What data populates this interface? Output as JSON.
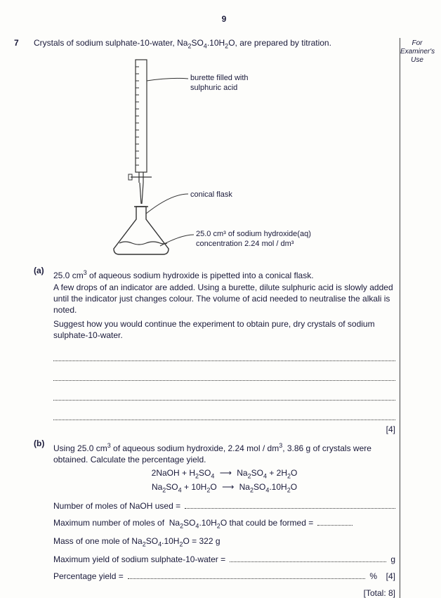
{
  "page_number": "9",
  "examiner_label": "For\nExaminer's\nUse",
  "question_number": "7",
  "intro_html": "Crystals of sodium sulphate-10-water, Na<sub>2</sub>SO<sub>4</sub>.10H<sub>2</sub>O, are prepared by titration.",
  "diagram": {
    "burette_label": "burette filled with\nsulphuric acid",
    "flask_label": "conical flask",
    "flask_content_html": "25.0 cm<sup>3</sup> of sodium hydroxide(aq)\nconcentration 2.24 mol / dm<sup>3</sup>",
    "stroke": "#333333",
    "label_fontsize": 11
  },
  "part_a": {
    "label": "(a)",
    "p1_html": "25.0 cm<sup>3</sup> of aqueous sodium hydroxide is pipetted into a conical flask.\nA few drops of an indicator are added. Using a burette, dilute sulphuric acid is slowly added until the indicator just changes colour. The volume of acid needed to neutralise the alkali is noted.",
    "p2": "Suggest how you would continue the experiment to obtain pure, dry crystals of sodium sulphate-10-water.",
    "answer_lines": 4,
    "marks": "[4]"
  },
  "part_b": {
    "label": "(b)",
    "p1_html": "Using 25.0 cm<sup>3</sup> of aqueous sodium hydroxide, 2.24 mol / dm<sup>3</sup>, 3.86 g of crystals were obtained. Calculate the percentage yield.",
    "eq1_lhs_html": "2NaOH  +  H<sub>2</sub>SO<sub>4</sub>",
    "eq1_rhs_html": "Na<sub>2</sub>SO<sub>4</sub>  +  2H<sub>2</sub>O",
    "eq2_lhs_html": "Na<sub>2</sub>SO<sub>4</sub>  +  10H<sub>2</sub>O",
    "eq2_rhs_html": "Na<sub>2</sub>SO<sub>4</sub>.10H<sub>2</sub>O",
    "line1": "Number of moles of NaOH used =",
    "line2_html": "Maximum number of moles of  Na<sub>2</sub>SO<sub>4</sub>.10H<sub>2</sub>O that could be formed =",
    "line3_html": "Mass of one mole of Na<sub>2</sub>SO<sub>4</sub>.10H<sub>2</sub>O = 322 g",
    "line4": "Maximum yield of sodium sulphate-10-water =",
    "line4_unit": "g",
    "line5": "Percentage yield =",
    "line5_unit": "%",
    "marks": "[4]",
    "total": "[Total: 8]"
  }
}
